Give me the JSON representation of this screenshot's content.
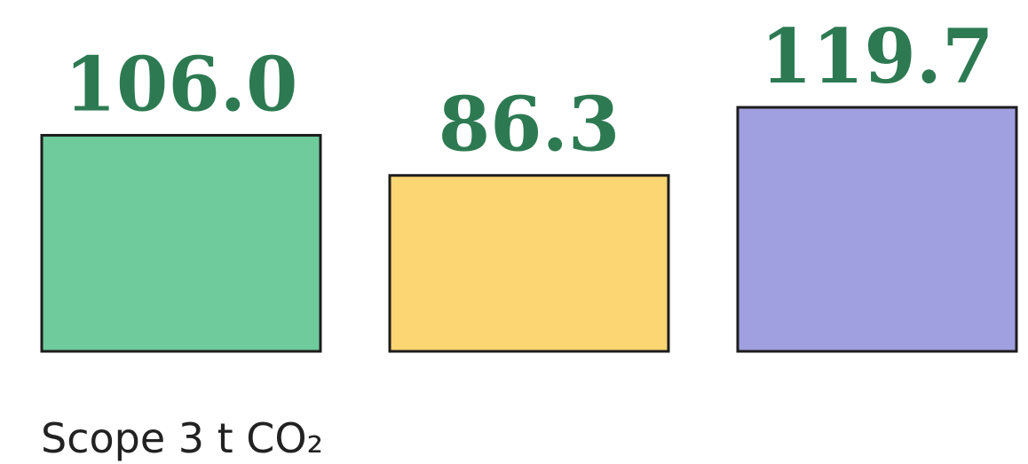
{
  "chart_data": {
    "type": "bar",
    "categories": [
      "",
      "",
      ""
    ],
    "values": [
      106.0,
      86.3,
      119.7
    ],
    "value_labels": [
      "106.0",
      "86.3",
      "119.7"
    ],
    "bar_colors": [
      "#6fcb9c",
      "#fdd674",
      "#a09fdf"
    ],
    "label_color": "#2d7a52",
    "bar_outline_color": "#1d1d1d",
    "xlabel": "Scope 3 t CO₂",
    "ylabel": "",
    "title": "",
    "grid": false,
    "legend": "none"
  }
}
